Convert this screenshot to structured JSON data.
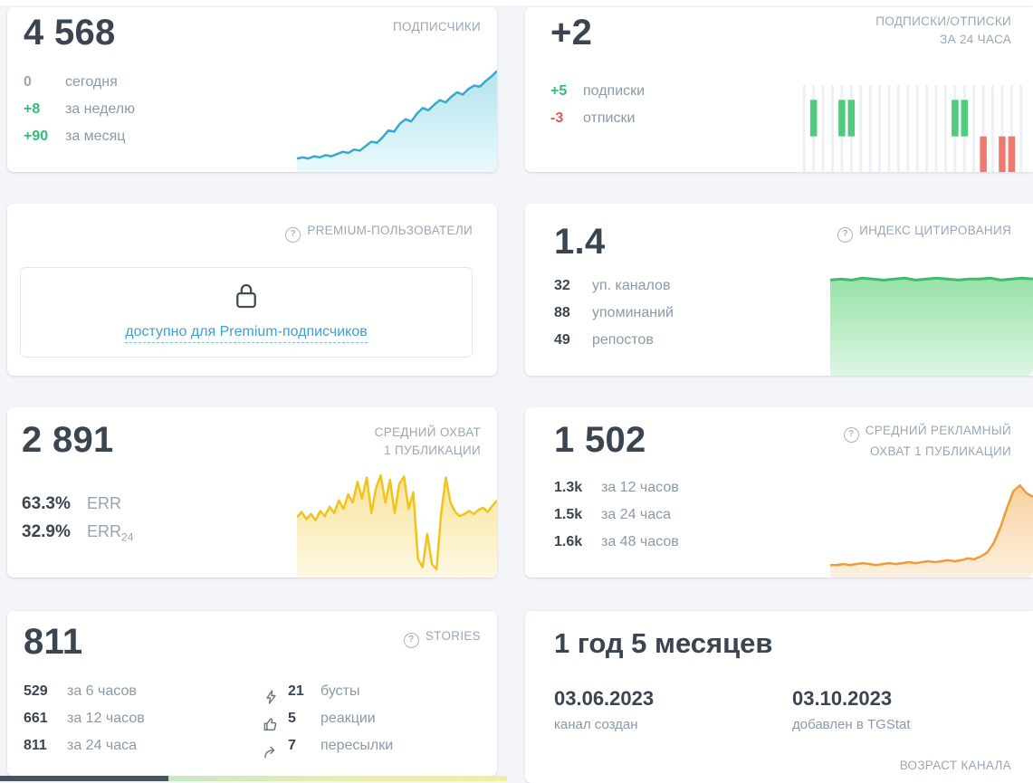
{
  "colors": {
    "text_dark": "#3a4551",
    "text_gray": "#8c99a8",
    "title_gray": "#9aa7b6",
    "green": "#2fbe75",
    "red": "#e8584f",
    "link_blue": "#3e9fd4",
    "chart_blue": "#39a9cb",
    "chart_yellow": "#f2c21d",
    "chart_orange": "#f09a38",
    "chart_green": "#3fbb6a"
  },
  "cards": {
    "subscribers": {
      "title": "ПОДПИСЧИКИ",
      "value": "4 568",
      "stats": [
        {
          "value": "0",
          "label": "сегодня"
        },
        {
          "value": "+8",
          "label": "за неделю"
        },
        {
          "value": "+90",
          "label": "за месяц"
        }
      ]
    },
    "subs_24h": {
      "title_line1": "ПОДПИСКИ/ОТПИСКИ",
      "title_line2": "ЗА 24 ЧАСА",
      "value": "+2",
      "stats": [
        {
          "value": "+5",
          "label": "подписки"
        },
        {
          "value": "-3",
          "label": "отписки"
        }
      ]
    },
    "premium": {
      "title": "PREMIUM-ПОЛЬЗОВАТЕЛИ",
      "link": "доступно для Premium-подписчиков"
    },
    "citation": {
      "title": "ИНДЕКС ЦИТИРОВАНИЯ",
      "value": "1.4",
      "stats": [
        {
          "value": "32",
          "label": "уп. каналов"
        },
        {
          "value": "88",
          "label": "упоминаний"
        },
        {
          "value": "49",
          "label": "репостов"
        }
      ]
    },
    "avg_reach": {
      "title_line1": "СРЕДНИЙ ОХВАТ",
      "title_line2": "1 ПУБЛИКАЦИИ",
      "value": "2 891",
      "err": [
        {
          "value": "63.3%",
          "label": "ERR",
          "sub": ""
        },
        {
          "value": "32.9%",
          "label": "ERR",
          "sub": "24"
        }
      ]
    },
    "avg_ad_reach": {
      "title_line1": "СРЕДНИЙ РЕКЛАМНЫЙ",
      "title_line2": "ОХВАТ 1 ПУБЛИКАЦИИ",
      "value": "1 502",
      "stats": [
        {
          "value": "1.3k",
          "label": "за 12 часов"
        },
        {
          "value": "1.5k",
          "label": "за 24 часа"
        },
        {
          "value": "1.6k",
          "label": "за 48 часов"
        }
      ]
    },
    "stories": {
      "title": "STORIES",
      "value": "811",
      "stats": [
        {
          "value": "529",
          "label": "за 6 часов"
        },
        {
          "value": "661",
          "label": "за 12 часов"
        },
        {
          "value": "811",
          "label": "за 24 часа"
        }
      ],
      "extra": [
        {
          "icon": "boost-icon",
          "value": "21",
          "label": "бусты"
        },
        {
          "icon": "thumb-up-icon",
          "value": "5",
          "label": "реакции"
        },
        {
          "icon": "forward-icon",
          "value": "7",
          "label": "пересылки"
        }
      ]
    },
    "age": {
      "value": "1 год 5 месяцев",
      "created_date": "03.06.2023",
      "created_label": "канал создан",
      "added_date": "03.10.2023",
      "added_label": "добавлен в TGStat",
      "footer": "ВОЗРАСТ КАНАЛА"
    }
  },
  "charts": {
    "subscribers": {
      "type": "area",
      "stroke": "#39a9cb",
      "stroke_width": 2.5,
      "fill_top": "#b3e3ee",
      "fill_bottom": "#eafafd",
      "values": [
        12,
        13,
        12,
        14,
        13,
        15,
        14,
        16,
        18,
        17,
        20,
        19,
        23,
        27,
        26,
        31,
        37,
        36,
        43,
        47,
        45,
        52,
        57,
        55,
        60,
        64,
        62,
        67,
        71,
        69,
        74,
        77,
        76,
        81,
        85,
        90
      ]
    },
    "subs_bars": {
      "type": "bars",
      "baseline": 0.59,
      "bar_height": 0.42,
      "up_color": "#4ecb7d",
      "down_color": "#ee7a6f",
      "grid_color": "#edf0f4",
      "values": [
        0,
        1,
        0,
        0,
        1,
        1,
        0,
        0,
        0,
        0,
        0,
        0,
        0,
        0,
        0,
        0,
        1,
        1,
        0,
        -1,
        0,
        -1,
        -1,
        0
      ]
    },
    "citation": {
      "type": "area",
      "stroke": "#3fbb6a",
      "stroke_width": 3,
      "fill_top": "#97e2a8",
      "fill_bottom": "#ddf6e3",
      "values": [
        96,
        97,
        96,
        98,
        97,
        96,
        97,
        98,
        96,
        97,
        98,
        97,
        96,
        97,
        97,
        98,
        96,
        97,
        98,
        97
      ]
    },
    "avg_reach": {
      "type": "area",
      "stroke": "#f2c21d",
      "stroke_width": 2.5,
      "fill_top": "#f8e49a",
      "fill_bottom": "#fdf8e4",
      "values": [
        58,
        63,
        56,
        61,
        55,
        64,
        59,
        68,
        62,
        74,
        66,
        80,
        72,
        92,
        76,
        96,
        62,
        86,
        98,
        72,
        94,
        62,
        90,
        97,
        66,
        82,
        18,
        10,
        42,
        13,
        8,
        62,
        96,
        72,
        63,
        59,
        61,
        64,
        61,
        65,
        67,
        63,
        69,
        74
      ]
    },
    "avg_ad_reach": {
      "type": "area",
      "stroke": "#f09a38",
      "stroke_width": 2.5,
      "fill_top": "#f8d2a0",
      "fill_bottom": "#fdf0df",
      "values": [
        13,
        13,
        14,
        13,
        14,
        15,
        14,
        13,
        14,
        15,
        14,
        15,
        16,
        15,
        16,
        17,
        16,
        17,
        18,
        17,
        18,
        20,
        19,
        22,
        26,
        36,
        52,
        72,
        90,
        96,
        88,
        84
      ]
    }
  }
}
